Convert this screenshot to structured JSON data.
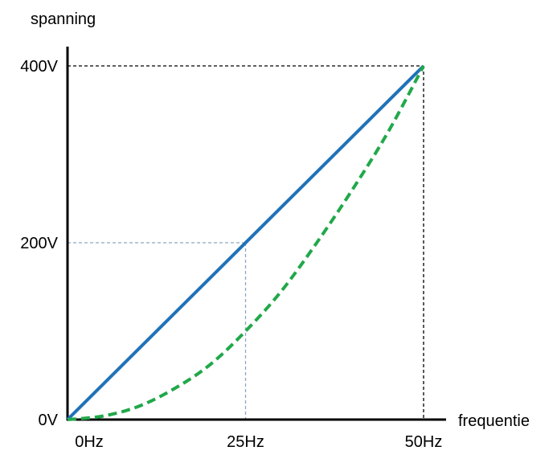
{
  "chart_data": {
    "type": "line",
    "title": "",
    "xlabel": "frequentie",
    "ylabel": "spanning",
    "x_unit": "Hz",
    "y_unit": "V",
    "xlim": [
      0,
      50
    ],
    "ylim": [
      0,
      400
    ],
    "x_ticks": [
      {
        "value": 0,
        "label": "0Hz"
      },
      {
        "value": 25,
        "label": "25Hz"
      },
      {
        "value": 50,
        "label": "50Hz"
      }
    ],
    "y_ticks": [
      {
        "value": 0,
        "label": "0V"
      },
      {
        "value": 200,
        "label": "200V"
      },
      {
        "value": 400,
        "label": "400V"
      }
    ],
    "grid": false,
    "reference_lines": [
      {
        "x": 25,
        "y": 200,
        "color": "#8ea6c0",
        "style": "dashed"
      },
      {
        "x": 50,
        "y": 400,
        "color": "#000000",
        "style": "dashed"
      }
    ],
    "series": [
      {
        "style": "solid",
        "color": "#1f72b8",
        "x": [
          0,
          50
        ],
        "y": [
          0,
          400
        ]
      },
      {
        "style": "dashed",
        "color": "#21a84a",
        "x": [
          0,
          5,
          10,
          15,
          20,
          25,
          30,
          35,
          40,
          45,
          50
        ],
        "y": [
          0,
          4,
          15,
          35,
          62,
          100,
          145,
          200,
          260,
          325,
          400
        ]
      }
    ]
  }
}
